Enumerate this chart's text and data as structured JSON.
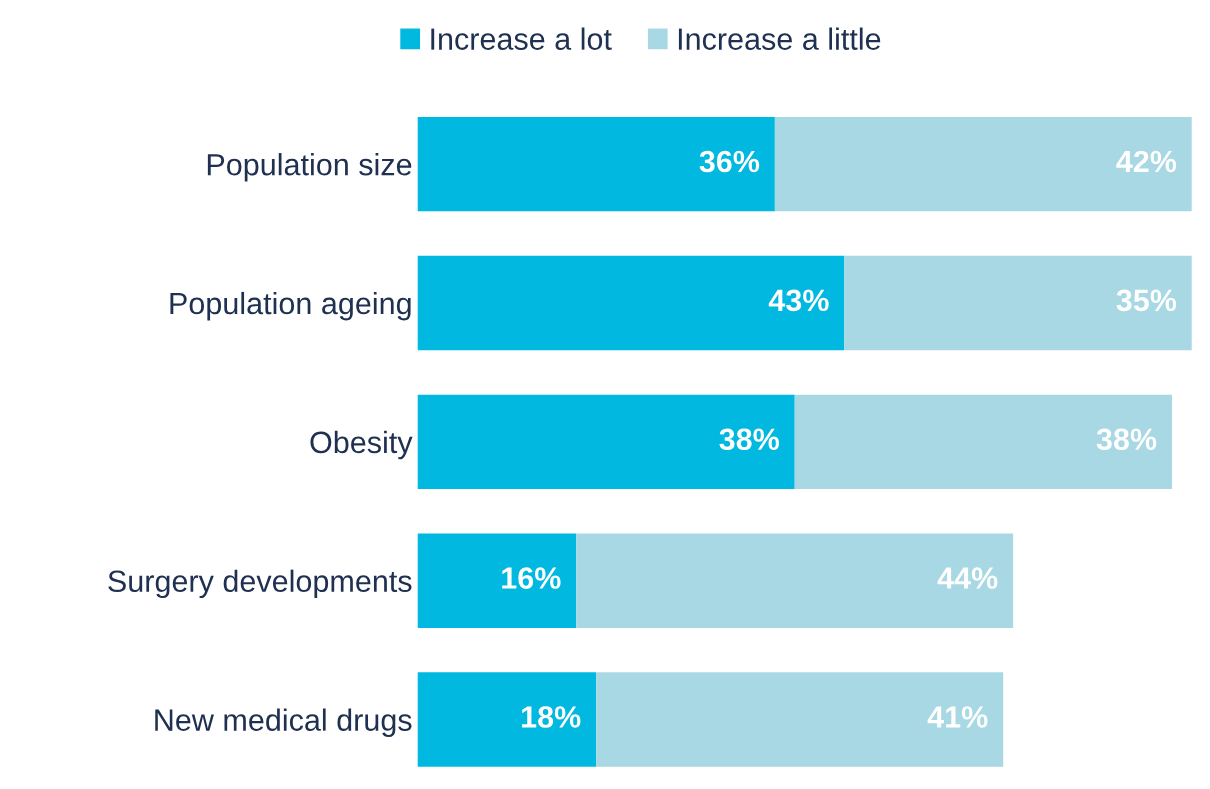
{
  "chart_data": {
    "type": "bar",
    "orientation": "horizontal",
    "stacked": true,
    "tick_labels": "y",
    "legend": "top",
    "grid": false,
    "categories": [
      "Population size",
      "Population ageing",
      "Obesity",
      "Surgery developments",
      "New medical drugs"
    ],
    "series": [
      {
        "name": "Increase a lot",
        "color": "#00b8e0",
        "values": [
          36,
          43,
          38,
          16,
          18
        ],
        "value_labels": [
          "36%",
          "43%",
          "38%",
          "16%",
          "18%"
        ]
      },
      {
        "name": "Increase a little",
        "color": "#a7d8e3",
        "values": [
          42,
          35,
          38,
          44,
          41
        ],
        "value_labels": [
          "42%",
          "35%",
          "38%",
          "44%",
          "41%"
        ]
      }
    ]
  }
}
